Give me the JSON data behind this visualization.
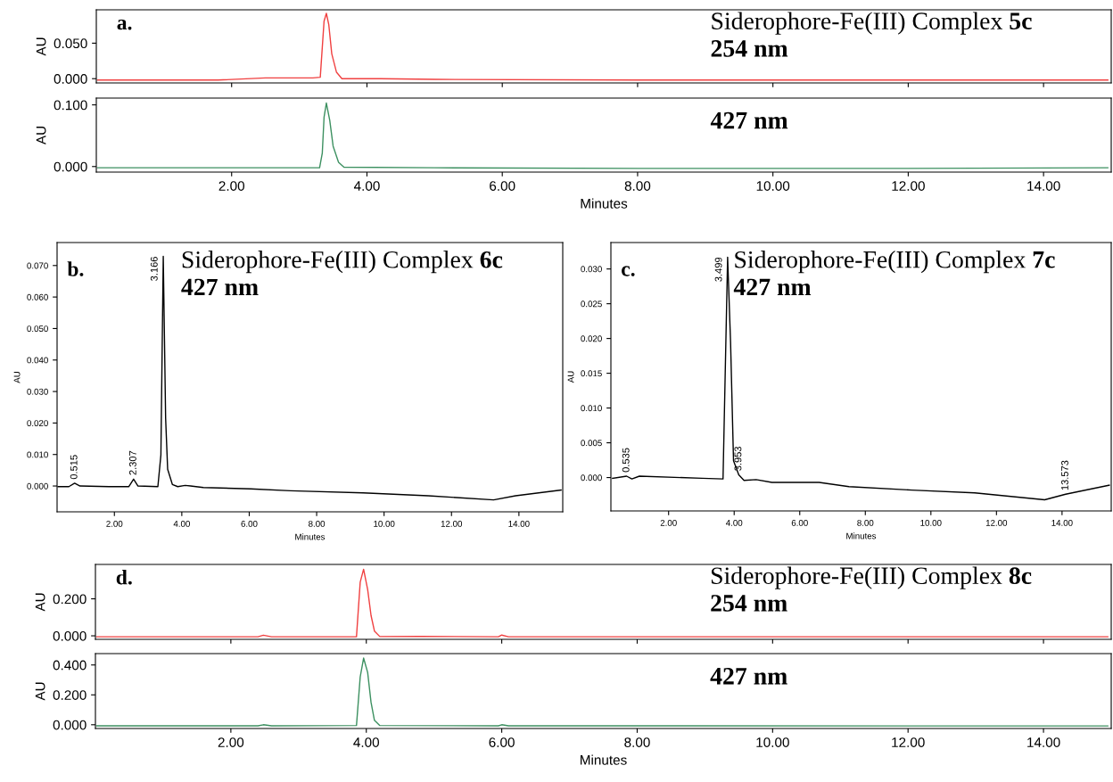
{
  "chart_data": [
    {
      "type": "line",
      "title": "Siderophore-Fe(III) Complex 5c",
      "subtitle": "254 nm",
      "ylabel": "AU",
      "annotations": [
        "a."
      ],
      "color": "#f04040",
      "tick_labels": "y",
      "x": [
        0.02,
        1.0,
        1.8,
        2.5,
        3.2,
        3.31,
        3.366,
        3.4,
        3.436,
        3.48,
        3.55,
        3.63,
        4.2,
        5.0,
        8.0,
        12.0,
        14.95
      ],
      "values": [
        -0.002,
        -0.002,
        -0.002,
        0.001,
        0.001,
        0.002,
        0.081,
        0.092,
        0.076,
        0.035,
        0.009,
        0.0,
        0.0,
        -0.001,
        -0.002,
        -0.002,
        -0.002
      ],
      "xlim": [
        0,
        15
      ],
      "xticks": [
        {
          "value": 2,
          "label": null
        },
        {
          "value": 4,
          "label": null
        },
        {
          "value": 6,
          "label": null
        },
        {
          "value": 8,
          "label": null
        },
        {
          "value": 10,
          "label": null
        },
        {
          "value": 12,
          "label": null
        },
        {
          "value": 14,
          "label": null
        }
      ],
      "ylim": [
        -0.006,
        0.097
      ],
      "yticks": [
        {
          "value": 0,
          "label": "0.000"
        },
        {
          "value": 0.05,
          "label": "0.050"
        }
      ]
    },
    {
      "type": "line",
      "subtitle": "427 nm",
      "ylabel": "AU",
      "xlabel": "Minutes",
      "color": "#3c9060",
      "x": [
        0.02,
        2.0,
        3.3,
        3.34,
        3.366,
        3.4,
        3.45,
        3.5,
        3.58,
        3.66,
        5.0,
        8.0,
        12.0,
        14.95
      ],
      "values": [
        -0.002,
        -0.002,
        -0.002,
        0.022,
        0.08,
        0.103,
        0.075,
        0.033,
        0.007,
        -0.001,
        -0.002,
        -0.003,
        -0.003,
        -0.002
      ],
      "xlim": [
        0,
        15
      ],
      "xticks": [
        {
          "value": 2,
          "label": "2.00"
        },
        {
          "value": 4,
          "label": "4.00"
        },
        {
          "value": 6,
          "label": "6.00"
        },
        {
          "value": 8,
          "label": "8.00"
        },
        {
          "value": 10,
          "label": "10.00"
        },
        {
          "value": 12,
          "label": "12.00"
        },
        {
          "value": 14,
          "label": "14.00"
        }
      ],
      "ylim": [
        -0.009,
        0.111
      ],
      "yticks": [
        {
          "value": 0,
          "label": "0.000"
        },
        {
          "value": 0.1,
          "label": "0.100"
        }
      ]
    },
    {
      "type": "line",
      "title": "Siderophore-Fe(III) Complex 6c",
      "subtitle": "427 nm",
      "ylabel": "AU",
      "xlabel": "Minutes",
      "color": "#000000",
      "annotations": [
        "b.",
        {
          "text": "0.515",
          "x": 0.82,
          "y": 0.0009
        },
        {
          "text": "2.307",
          "x": 2.57,
          "y": 0.0022
        },
        {
          "text": "3.166",
          "x": 3.45,
          "y": 0.0729
        }
      ],
      "x": [
        0.33,
        0.65,
        0.82,
        0.98,
        1.84,
        2.43,
        2.57,
        2.7,
        3.29,
        3.38,
        3.45,
        3.52,
        3.58,
        3.72,
        3.88,
        4.1,
        4.26,
        4.64,
        6.04,
        7.22,
        9.38,
        11.31,
        13.25,
        13.9,
        15.25
      ],
      "values": [
        -0.0002,
        -0.0002,
        0.0009,
        0.0,
        -0.0002,
        -0.0002,
        0.0022,
        0.0,
        -0.0002,
        0.0099,
        0.0729,
        0.0215,
        0.0053,
        0.0005,
        -0.0002,
        0.0002,
        0.0,
        -0.0005,
        -0.0009,
        -0.0015,
        -0.0022,
        -0.0031,
        -0.0044,
        -0.0031,
        -0.0013
      ],
      "xlim": [
        0.3,
        15.3
      ],
      "xticks": [
        {
          "value": 2,
          "label": "2.00"
        },
        {
          "value": 4,
          "label": "4.00"
        },
        {
          "value": 6,
          "label": "6.00"
        },
        {
          "value": 8,
          "label": "8.00"
        },
        {
          "value": 10,
          "label": "10.00"
        },
        {
          "value": 12,
          "label": "12.00"
        },
        {
          "value": 14,
          "label": "14.00"
        }
      ],
      "ylim": [
        -0.0082,
        0.0773
      ],
      "yticks": [
        {
          "value": 0,
          "label": "0.000"
        },
        {
          "value": 0.01,
          "label": "0.010"
        },
        {
          "value": 0.02,
          "label": "0.020"
        },
        {
          "value": 0.03,
          "label": "0.030"
        },
        {
          "value": 0.04,
          "label": "0.040"
        },
        {
          "value": 0.05,
          "label": "0.050"
        },
        {
          "value": 0.06,
          "label": "0.060"
        },
        {
          "value": 0.07,
          "label": "0.070"
        }
      ]
    },
    {
      "type": "line",
      "title": "Siderophore-Fe(III) Complex 7c",
      "subtitle": "427 nm",
      "ylabel": "AU",
      "xlabel": "Minutes",
      "color": "#000000",
      "annotations": [
        "c.",
        {
          "text": "0.535",
          "x": 0.72,
          "y": 0.0002
        },
        {
          "text": "3.499",
          "x": 3.8,
          "y": 0.0317
        },
        {
          "text": "3.953",
          "x": 4.14,
          "y": 0.0004
        },
        {
          "text": "13.573",
          "x": 14.11,
          "y": -0.0024
        }
      ],
      "x": [
        0.29,
        0.72,
        0.88,
        1.11,
        3.02,
        3.66,
        3.8,
        3.89,
        3.98,
        4.14,
        4.3,
        4.67,
        5.15,
        6.59,
        7.5,
        9.42,
        11.34,
        13.47,
        14.11,
        15.44
      ],
      "values": [
        -0.0001,
        0.0002,
        -0.0002,
        0.0002,
        -0.0001,
        -0.0002,
        0.0317,
        0.0195,
        0.0024,
        0.0004,
        -0.0004,
        -0.0003,
        -0.0007,
        -0.0007,
        -0.0013,
        -0.0018,
        -0.0022,
        -0.0032,
        -0.0024,
        -0.0011
      ],
      "xlim": [
        0.24,
        15.5
      ],
      "xticks": [
        {
          "value": 2,
          "label": "2.00"
        },
        {
          "value": 4,
          "label": "4.00"
        },
        {
          "value": 6,
          "label": "6.00"
        },
        {
          "value": 8,
          "label": "8.00"
        },
        {
          "value": 10,
          "label": "10.00"
        },
        {
          "value": 12,
          "label": "12.00"
        },
        {
          "value": 14,
          "label": "14.00"
        }
      ],
      "ylim": [
        -0.0048,
        0.0338
      ],
      "yticks": [
        {
          "value": 0,
          "label": "0.000"
        },
        {
          "value": 0.005,
          "label": "0.005"
        },
        {
          "value": 0.01,
          "label": "0.010"
        },
        {
          "value": 0.015,
          "label": "0.015"
        },
        {
          "value": 0.02,
          "label": "0.020"
        },
        {
          "value": 0.025,
          "label": "0.025"
        },
        {
          "value": 0.03,
          "label": "0.030"
        }
      ]
    },
    {
      "type": "line",
      "title": "Siderophore-Fe(III) Complex 8c",
      "subtitle": "254 nm",
      "ylabel": "AU",
      "annotations": [
        "d."
      ],
      "color": "#f04040",
      "tick_labels": "y",
      "x": [
        0.02,
        2.4,
        2.48,
        2.6,
        3.855,
        3.91,
        3.96,
        4.02,
        4.07,
        4.12,
        4.2,
        4.8,
        5.95,
        6.0,
        6.1,
        14.95
      ],
      "values": [
        -0.005,
        -0.005,
        0.003,
        -0.005,
        -0.005,
        0.29,
        0.36,
        0.25,
        0.11,
        0.026,
        -0.004,
        -0.003,
        -0.005,
        0.004,
        -0.005,
        -0.005
      ],
      "xlim": [
        0,
        15
      ],
      "xticks": [
        {
          "value": 2,
          "label": null
        },
        {
          "value": 4,
          "label": null
        },
        {
          "value": 6,
          "label": null
        },
        {
          "value": 8,
          "label": null
        },
        {
          "value": 10,
          "label": null
        },
        {
          "value": 12,
          "label": null
        },
        {
          "value": 14,
          "label": null
        }
      ],
      "ylim": [
        -0.019,
        0.386
      ],
      "yticks": [
        {
          "value": 0,
          "label": "0.000"
        },
        {
          "value": 0.2,
          "label": "0.200"
        }
      ]
    },
    {
      "type": "line",
      "subtitle": "427 nm",
      "ylabel": "AU",
      "xlabel": "Minutes",
      "color": "#3c9060",
      "x": [
        0.02,
        2.4,
        2.48,
        2.6,
        3.855,
        3.91,
        3.96,
        4.02,
        4.07,
        4.12,
        4.2,
        5.95,
        6.0,
        6.1,
        14.95
      ],
      "values": [
        -0.007,
        -0.007,
        0.0,
        -0.007,
        -0.005,
        0.32,
        0.446,
        0.35,
        0.15,
        0.03,
        -0.005,
        -0.007,
        0.0,
        -0.007,
        -0.008
      ],
      "xlim": [
        0,
        15
      ],
      "xticks": [
        {
          "value": 2,
          "label": "2.00"
        },
        {
          "value": 4,
          "label": "4.00"
        },
        {
          "value": 6,
          "label": "6.00"
        },
        {
          "value": 8,
          "label": "8.00"
        },
        {
          "value": 10,
          "label": "10.00"
        },
        {
          "value": 12,
          "label": "12.00"
        },
        {
          "value": 14,
          "label": "14.00"
        }
      ],
      "ylim": [
        -0.025,
        0.476
      ],
      "yticks": [
        {
          "value": 0,
          "label": "0.000"
        },
        {
          "value": 0.2,
          "label": "0.200"
        },
        {
          "value": 0.4,
          "label": "0.400"
        }
      ]
    }
  ]
}
